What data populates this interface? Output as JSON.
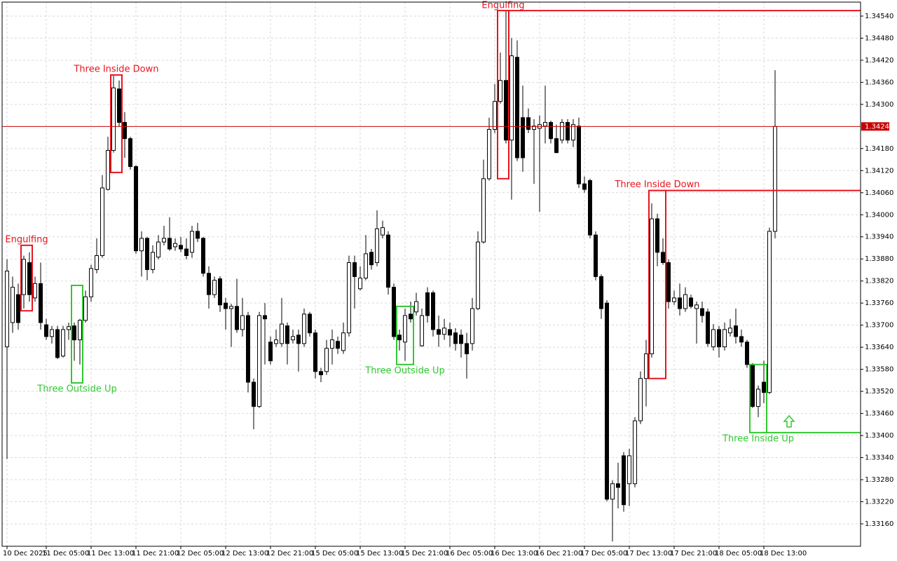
{
  "chart_data": {
    "type": "candlestick",
    "categories": [
      "10 Dec 2025",
      null,
      null,
      null,
      null,
      null,
      null,
      "11 Dec 05:00",
      null,
      null,
      null,
      null,
      null,
      null,
      null,
      "11 Dec 13:00",
      null,
      null,
      null,
      null,
      null,
      null,
      null,
      "11 Dec 21:00",
      null,
      null,
      null,
      null,
      null,
      null,
      null,
      "12 Dec 05:00",
      null,
      null,
      null,
      null,
      null,
      null,
      null,
      "12 Dec 13:00",
      null,
      null,
      null,
      null,
      null,
      null,
      null,
      "12 Dec 21:00",
      null,
      null,
      null,
      null,
      null,
      null,
      null,
      "15 Dec 05:00",
      null,
      null,
      null,
      null,
      null,
      null,
      null,
      "15 Dec 13:00",
      null,
      null,
      null,
      null,
      null,
      null,
      null,
      "15 Dec 21:00",
      null,
      null,
      null,
      null,
      null,
      null,
      null,
      "16 Dec 05:00",
      null,
      null,
      null,
      null,
      null,
      null,
      null,
      "16 Dec 13:00",
      null,
      null,
      null,
      null,
      null,
      null,
      null,
      "16 Dec 21:00",
      null,
      null,
      null,
      null,
      null,
      null,
      null,
      "17 Dec 05:00",
      null,
      null,
      null,
      null,
      null,
      null,
      null,
      "17 Dec 13:00",
      null,
      null,
      null,
      null,
      null,
      null,
      null,
      "17 Dec 21:00",
      null,
      null,
      null,
      null,
      null,
      null,
      null,
      "18 Dec 05:00",
      null,
      null,
      null,
      null,
      null,
      null,
      null,
      "18 Dec 13:00",
      null,
      null
    ],
    "open": [
      1.33641,
      1.33707,
      1.33783,
      1.33783,
      1.3387,
      1.33774,
      1.33813,
      1.33701,
      1.33669,
      1.33688,
      1.33616,
      1.33688,
      1.33698,
      1.3366,
      1.33713,
      1.33777,
      1.33851,
      1.33889,
      1.34069,
      1.34175,
      1.34342,
      1.34251,
      1.34207,
      1.34131,
      1.33902,
      1.33936,
      1.33851,
      1.33885,
      1.33926,
      1.33936,
      1.33913,
      1.33917,
      1.33907,
      1.33898,
      1.33955,
      1.33936,
      1.33841,
      1.33783,
      1.33826,
      1.3376,
      1.33745,
      1.33751,
      1.33688,
      1.33726,
      1.33545,
      1.33479,
      1.33726,
      1.33654,
      1.3365,
      1.3365,
      1.33698,
      1.3366,
      1.33673,
      1.3365,
      1.3373,
      1.33679,
      1.33574,
      1.33574,
      1.33637,
      1.33656,
      1.33631,
      1.33679,
      1.3387,
      1.33799,
      1.33828,
      1.33898,
      1.3387,
      1.33945,
      1.33945,
      1.33803,
      1.33673,
      1.33654,
      1.3373,
      1.33736,
      1.33644,
      1.33788,
      1.33788,
      1.33688,
      1.33675,
      1.33688,
      1.33679,
      1.33673,
      1.3365,
      1.3365,
      1.33745,
      1.33926,
      1.34098,
      1.34232,
      1.34308,
      1.34365,
      1.34203,
      1.34428,
      1.34264,
      1.34264,
      1.34232,
      1.34235,
      1.34241,
      1.34251,
      1.34207,
      1.34203,
      1.34251,
      1.34203,
      1.34241,
      1.34084,
      1.34093,
      1.33945,
      1.33832,
      1.3376,
      1.33227,
      1.33269,
      1.33345,
      1.33269,
      1.33269,
      1.3344,
      1.33555,
      1.33622,
      1.33989,
      1.33898,
      1.3387,
      1.33764,
      1.33774,
      1.33745,
      1.33774,
      1.33745,
      1.33745,
      1.33736,
      1.33641,
      1.33688,
      1.33641,
      1.33679,
      1.33698,
      1.33669,
      1.33654,
      1.33593,
      1.33479,
      1.33545,
      1.33517,
      1.33955
    ],
    "high": [
      1.33879,
      1.33832,
      1.33813,
      1.33889,
      1.33898,
      1.33832,
      1.3387,
      1.33717,
      1.33698,
      1.33698,
      1.33698,
      1.33707,
      1.33707,
      1.33717,
      1.33794,
      1.33864,
      1.33936,
      1.34108,
      1.34212,
      1.34378,
      1.34365,
      1.34279,
      1.34212,
      1.34135,
      1.33955,
      1.3394,
      1.33917,
      1.33945,
      1.3397,
      1.33993,
      1.33936,
      1.3394,
      1.33936,
      1.3397,
      1.33978,
      1.3394,
      1.3386,
      1.33832,
      1.33833,
      1.33774,
      1.33758,
      1.33826,
      1.33774,
      1.33736,
      1.33555,
      1.33736,
      1.3376,
      1.33669,
      1.33688,
      1.33774,
      1.33707,
      1.33688,
      1.33688,
      1.33745,
      1.33736,
      1.33688,
      1.33584,
      1.3366,
      1.33688,
      1.33669,
      1.33707,
      1.33889,
      1.33889,
      1.3386,
      1.33945,
      1.33907,
      1.34012,
      1.33984,
      1.33955,
      1.33813,
      1.33688,
      1.33745,
      1.33764,
      1.33788,
      1.33745,
      1.33803,
      1.33794,
      1.33726,
      1.33717,
      1.33707,
      1.33692,
      1.33688,
      1.33679,
      1.33774,
      1.33955,
      1.3415,
      1.34264,
      1.34355,
      1.34441,
      1.34555,
      1.3448,
      1.34474,
      1.34351,
      1.34289,
      1.3426,
      1.3427,
      1.34351,
      1.34256,
      1.34245,
      1.3426,
      1.3426,
      1.3426,
      1.34264,
      1.34104,
      1.34098,
      1.33955,
      1.33838,
      1.33768,
      1.33278,
      1.33326,
      1.33355,
      1.33364,
      1.3345,
      1.33574,
      1.3366,
      1.34031,
      1.34003,
      1.33936,
      1.33879,
      1.33794,
      1.33813,
      1.33803,
      1.33783,
      1.33764,
      1.33764,
      1.33745,
      1.33703,
      1.33698,
      1.33707,
      1.33717,
      1.33745,
      1.33688,
      1.3366,
      1.33597,
      1.33536,
      1.33603,
      1.33965,
      1.34393
    ],
    "low": [
      1.33336,
      1.33679,
      1.33688,
      1.33745,
      1.33764,
      1.33764,
      1.33688,
      1.3366,
      1.3365,
      1.33608,
      1.33612,
      1.3366,
      1.33603,
      1.33593,
      1.33707,
      1.33764,
      1.33841,
      1.33883,
      1.34066,
      1.34169,
      1.34241,
      1.34155,
      1.34123,
      1.33894,
      1.33832,
      1.33822,
      1.33841,
      1.33879,
      1.33917,
      1.33902,
      1.33902,
      1.33898,
      1.33879,
      1.33883,
      1.33926,
      1.33832,
      1.33745,
      1.33774,
      1.33736,
      1.33688,
      1.33641,
      1.33679,
      1.33669,
      1.33517,
      1.33417,
      1.33475,
      1.33593,
      1.33593,
      1.33641,
      1.33641,
      1.33593,
      1.3365,
      1.33574,
      1.33641,
      1.33669,
      1.33555,
      1.33545,
      1.33565,
      1.33593,
      1.33622,
      1.33622,
      1.33669,
      1.33745,
      1.33794,
      1.33822,
      1.33851,
      1.3386,
      1.33936,
      1.33783,
      1.3366,
      1.33631,
      1.33603,
      1.33707,
      1.33726,
      1.33641,
      1.33707,
      1.33669,
      1.33641,
      1.3366,
      1.33641,
      1.33631,
      1.33612,
      1.33555,
      1.33631,
      1.33741,
      1.33922,
      1.34093,
      1.34222,
      1.34302,
      1.34194,
      1.34041,
      1.34146,
      1.34117,
      1.34222,
      1.34084,
      1.34008,
      1.34194,
      1.34194,
      1.34167,
      1.34194,
      1.34194,
      1.34184,
      1.34073,
      1.3406,
      1.33936,
      1.33822,
      1.33717,
      1.33221,
      1.33112,
      1.33202,
      1.33193,
      1.33208,
      1.33259,
      1.33431,
      1.33479,
      1.33612,
      1.3386,
      1.33864,
      1.33745,
      1.33755,
      1.33726,
      1.33736,
      1.33745,
      1.3365,
      1.33707,
      1.33641,
      1.33631,
      1.33612,
      1.33631,
      1.33669,
      1.3365,
      1.33641,
      1.33584,
      1.33475,
      1.3345,
      1.33488,
      1.33513,
      1.33936
    ],
    "close": [
      1.33847,
      1.33803,
      1.33707,
      1.33879,
      1.33783,
      1.33813,
      1.33707,
      1.33669,
      1.33688,
      1.33612,
      1.33688,
      1.33696,
      1.3366,
      1.33713,
      1.33777,
      1.33854,
      1.33889,
      1.34073,
      1.34175,
      1.34345,
      1.34251,
      1.34207,
      1.34131,
      1.33902,
      1.33936,
      1.33851,
      1.33898,
      1.33926,
      1.33936,
      1.33907,
      1.33922,
      1.33907,
      1.33889,
      1.33955,
      1.33936,
      1.33841,
      1.33783,
      1.33822,
      1.33755,
      1.33745,
      1.33751,
      1.33688,
      1.33726,
      1.33545,
      1.33479,
      1.33726,
      1.33717,
      1.33603,
      1.3366,
      1.33703,
      1.3365,
      1.33669,
      1.3365,
      1.3373,
      1.33679,
      1.33574,
      1.33565,
      1.33637,
      1.3366,
      1.33637,
      1.33679,
      1.3387,
      1.33832,
      1.33828,
      1.33894,
      1.33864,
      1.33962,
      1.33965,
      1.33803,
      1.33669,
      1.3366,
      1.33726,
      1.33717,
      1.33764,
      1.33726,
      1.33726,
      1.33688,
      1.33675,
      1.33692,
      1.33673,
      1.3365,
      1.3365,
      1.33622,
      1.33745,
      1.33926,
      1.34098,
      1.34232,
      1.34308,
      1.34365,
      1.34203,
      1.34432,
      1.34155,
      1.34155,
      1.34232,
      1.34241,
      1.34245,
      1.34251,
      1.34207,
      1.34169,
      1.34251,
      1.34203,
      1.34245,
      1.34084,
      1.34069,
      1.33945,
      1.33832,
      1.33745,
      1.33227,
      1.33269,
      1.33259,
      1.33212,
      1.33345,
      1.3344,
      1.33555,
      1.33622,
      1.33989,
      1.33898,
      1.3387,
      1.33764,
      1.33774,
      1.33745,
      1.33783,
      1.33751,
      1.33755,
      1.33726,
      1.3365,
      1.33688,
      1.33641,
      1.33688,
      1.33692,
      1.33669,
      1.33654,
      1.33593,
      1.33479,
      1.33526,
      1.33517,
      1.33955,
      1.3424
    ],
    "colors": {
      "up": "#ffffff",
      "down": "#000000",
      "outline": "#000000"
    },
    "ylim": [
      1.33099,
      1.34578
    ],
    "yticks": [
      {
        "value": 1.3316,
        "label": "1.33160"
      },
      {
        "value": 1.3322,
        "label": "1.33220"
      },
      {
        "value": 1.3328,
        "label": "1.33280"
      },
      {
        "value": 1.3334,
        "label": "1.33340"
      },
      {
        "value": 1.334,
        "label": "1.33400"
      },
      {
        "value": 1.3346,
        "label": "1.33460"
      },
      {
        "value": 1.3352,
        "label": "1.33520"
      },
      {
        "value": 1.3358,
        "label": "1.33580"
      },
      {
        "value": 1.3364,
        "label": "1.33640"
      },
      {
        "value": 1.337,
        "label": "1.33700"
      },
      {
        "value": 1.3376,
        "label": "1.33760"
      },
      {
        "value": 1.3382,
        "label": "1.33820"
      },
      {
        "value": 1.3388,
        "label": "1.33880"
      },
      {
        "value": 1.3394,
        "label": "1.33940"
      },
      {
        "value": 1.34,
        "label": "1.34000"
      },
      {
        "value": 1.3406,
        "label": "1.34060"
      },
      {
        "value": 1.3412,
        "label": "1.34120"
      },
      {
        "value": 1.3418,
        "label": "1.34180"
      },
      {
        "value": 1.343,
        "label": "1.34300"
      },
      {
        "value": 1.3436,
        "label": "1.34360"
      },
      {
        "value": 1.3442,
        "label": "1.34420"
      },
      {
        "value": 1.3448,
        "label": "1.34480"
      },
      {
        "value": 1.3454,
        "label": "1.34540"
      }
    ],
    "grid": true,
    "current_price": {
      "value": 1.3424,
      "label": "1.34240",
      "color": "#c80000"
    },
    "annotations": [
      {
        "text": "Engulfing",
        "color": "#e8141e",
        "start": 3,
        "end": 4,
        "top": 1.33917,
        "bottom": 1.33739,
        "text_position": "above"
      },
      {
        "text": "Three Inside Down",
        "color": "#e8141e",
        "start": 19,
        "end": 20,
        "top": 1.3438,
        "bottom": 1.34115,
        "text_position": "above"
      },
      {
        "text": "Three Outside Up",
        "color": "#32c832",
        "start": 12,
        "end": 13,
        "top": 1.33808,
        "bottom": 1.33543,
        "text_position": "below"
      },
      {
        "text": "Three Outside Up",
        "color": "#32c832",
        "start": 70,
        "end": 72,
        "top": 1.33751,
        "bottom": 1.33593,
        "text_position": "below"
      },
      {
        "text": "Engulfing",
        "color": "#e8141e",
        "start": 88,
        "end": 89,
        "top": 1.34555,
        "bottom": 1.34098,
        "text_position": "above",
        "level": 1.34555
      },
      {
        "text": "Three Inside Down",
        "color": "#e8141e",
        "start": 115,
        "end": 117,
        "top": 1.34066,
        "bottom": 1.33555,
        "text_position": "above",
        "level": 1.34066
      },
      {
        "text": "Three Inside Up",
        "color": "#32c832",
        "start": 133,
        "end": 135,
        "top": 1.33593,
        "bottom": 1.33408,
        "text_position": "below",
        "level": 1.33408,
        "arrow": "up"
      }
    ]
  }
}
